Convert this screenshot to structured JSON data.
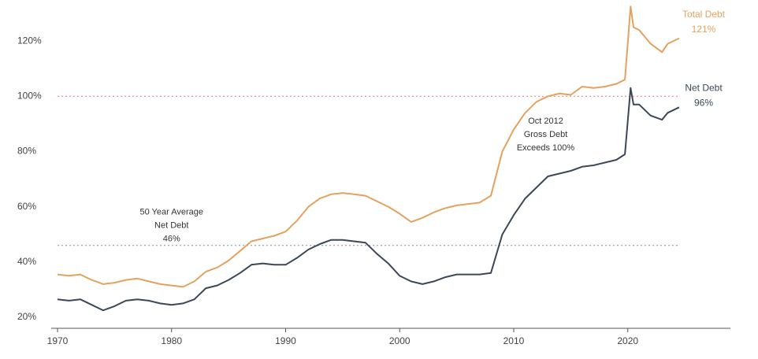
{
  "chart_data": {
    "type": "line",
    "x": [
      1970,
      1971,
      1972,
      1973,
      1974,
      1975,
      1976,
      1977,
      1978,
      1979,
      1980,
      1981,
      1982,
      1983,
      1984,
      1985,
      1986,
      1987,
      1988,
      1989,
      1990,
      1991,
      1992,
      1993,
      1994,
      1995,
      1996,
      1997,
      1998,
      1999,
      2000,
      2001,
      2002,
      2003,
      2004,
      2005,
      2006,
      2007,
      2008,
      2009,
      2010,
      2011,
      2012,
      2013,
      2014,
      2015,
      2016,
      2017,
      2018,
      2019,
      2019.75,
      2020.25,
      2020.5,
      2021,
      2022,
      2023,
      2023.5,
      2024.5
    ],
    "series": [
      {
        "name": "Total Debt",
        "color": "#e3a25f",
        "end_label": "121%",
        "values": [
          35.5,
          35,
          35.5,
          33.5,
          32,
          32.5,
          33.5,
          34,
          33,
          32,
          31.5,
          31,
          33,
          36.5,
          38,
          40.5,
          44,
          47.5,
          48.5,
          49.5,
          51,
          55,
          60,
          63,
          64.5,
          65,
          64.5,
          64,
          62,
          60,
          57.5,
          54.5,
          56,
          58,
          59.5,
          60.5,
          61,
          61.5,
          64,
          80,
          88,
          94,
          98,
          100,
          101,
          100.5,
          103.5,
          103,
          103.5,
          104.5,
          106,
          132.5,
          125,
          124,
          119,
          116,
          119,
          121
        ]
      },
      {
        "name": "Net Debt",
        "color": "#3b4858",
        "end_label": "96%",
        "values": [
          26.5,
          26,
          26.5,
          24.5,
          22.5,
          24,
          26,
          26.5,
          26,
          25,
          24.5,
          25,
          26.5,
          30.5,
          31.5,
          33.5,
          36,
          39,
          39.5,
          39,
          39,
          41.5,
          44.5,
          46.5,
          48,
          48,
          47.5,
          47,
          43,
          39.5,
          35,
          33,
          32,
          33,
          34.5,
          35.5,
          35.5,
          35.5,
          36,
          50,
          57,
          63,
          67,
          71,
          72,
          73,
          74.5,
          75,
          76,
          77,
          79,
          103,
          97,
          97,
          93,
          91.5,
          94,
          96
        ]
      }
    ],
    "xlim": [
      1970,
      2029
    ],
    "xticks": [
      1970,
      1980,
      1990,
      2000,
      2010,
      2020
    ],
    "ylim": [
      16,
      134
    ],
    "yticks": [
      {
        "value": 20,
        "label": "20%"
      },
      {
        "value": 40,
        "label": "40%"
      },
      {
        "value": 60,
        "label": "60%"
      },
      {
        "value": 80,
        "label": "80%"
      },
      {
        "value": 100,
        "label": "100%"
      },
      {
        "value": 120,
        "label": "120%"
      }
    ],
    "reference_lines": [
      {
        "value": 100,
        "color": "#e07a7a"
      },
      {
        "value": 46,
        "color": "#7c8fa3"
      }
    ],
    "annotations": [
      {
        "lines": [
          "50 Year Average",
          "Net Debt",
          "46%"
        ],
        "x": 1980,
        "y": 58
      },
      {
        "lines": [
          "Oct 2012",
          "Gross Debt",
          "Exceeds 100%"
        ],
        "x": 2012.8,
        "y": 91
      }
    ]
  }
}
